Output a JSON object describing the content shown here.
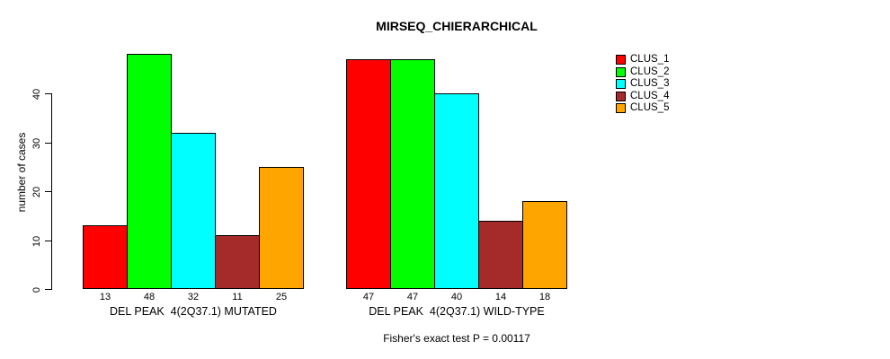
{
  "chart_data": {
    "type": "bar",
    "title": "MIRSEQ_CHIERARCHICAL",
    "ylabel": "number of cases",
    "xlabel": "",
    "categories": [
      "DEL PEAK  4(2Q37.1) MUTATED",
      "DEL PEAK  4(2Q37.1) WILD-TYPE"
    ],
    "series": [
      {
        "name": "CLUS_1",
        "color": "#FF0000",
        "values": [
          13,
          47
        ]
      },
      {
        "name": "CLUS_2",
        "color": "#00FF00",
        "values": [
          48,
          47
        ]
      },
      {
        "name": "CLUS_3",
        "color": "#00FFFF",
        "values": [
          32,
          40
        ]
      },
      {
        "name": "CLUS_4",
        "color": "#A52A2A",
        "values": [
          11,
          14
        ]
      },
      {
        "name": "CLUS_5",
        "color": "#FFA500",
        "values": [
          25,
          18
        ]
      }
    ],
    "yticks": [
      0,
      10,
      20,
      30,
      40
    ],
    "ylim": [
      0,
      48
    ],
    "grid": false,
    "show_bar_values": true,
    "legend_position": "right",
    "legend_labels": [
      "CLUS_1",
      "CLUS_2",
      "CLUS_3",
      "CLUS_4",
      "CLUS_5"
    ],
    "annotation": "Fisher's exact test P = 0.00117",
    "bar_border_color": "#000000",
    "background_color": "#FFFFFF"
  }
}
